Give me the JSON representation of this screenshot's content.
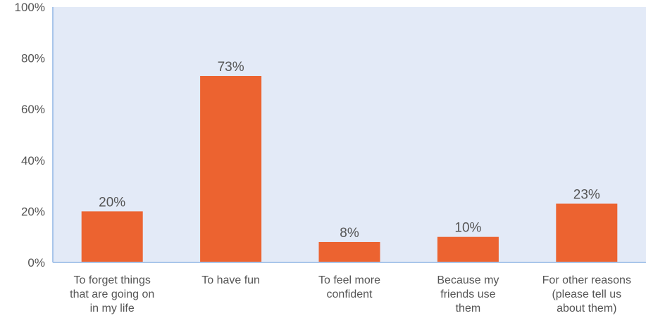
{
  "chart_data": {
    "type": "bar",
    "categories": [
      [
        "To forget things",
        "that are going on",
        "in my life"
      ],
      [
        "To have fun"
      ],
      [
        "To feel more",
        "confident"
      ],
      [
        "Because my",
        "friends use",
        "them"
      ],
      [
        "For other reasons",
        "(please tell us",
        "about them)"
      ]
    ],
    "values": [
      20,
      73,
      8,
      10,
      23
    ],
    "data_labels": [
      "20%",
      "73%",
      "8%",
      "10%",
      "23%"
    ],
    "ylim": [
      0,
      100
    ],
    "yticks": [
      0,
      20,
      40,
      60,
      80,
      100
    ],
    "ytick_labels": [
      "0%",
      "20%",
      "40%",
      "60%",
      "80%",
      "100%"
    ],
    "title": "",
    "xlabel": "",
    "ylabel": "",
    "grid": false,
    "colors": {
      "bar": "#EC6330",
      "plot_background": "#E3EAF7",
      "axis": "#A9C6EA",
      "text": "#555555"
    }
  }
}
